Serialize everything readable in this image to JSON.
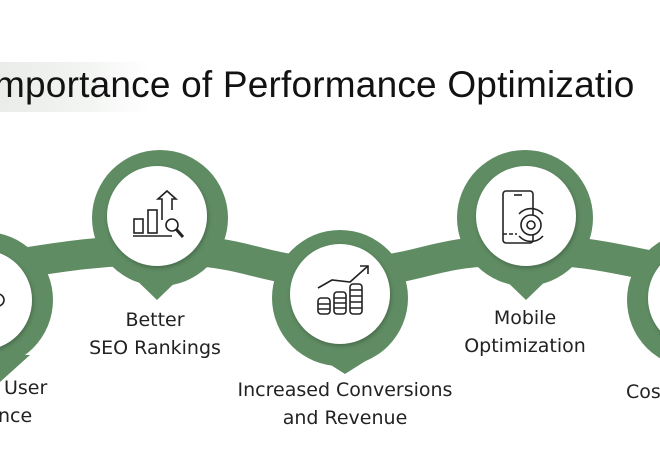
{
  "title": "mportance of Performance Optimizatio",
  "accent_color": "#5f8c63",
  "items": [
    {
      "icon": "user-experience-icon",
      "lines": [
        "User",
        "nce"
      ]
    },
    {
      "icon": "seo-chart-search-icon",
      "lines": [
        "Better",
        "SEO Rankings"
      ]
    },
    {
      "icon": "coins-growth-icon",
      "lines": [
        "Increased Conversions",
        "and Revenue"
      ]
    },
    {
      "icon": "mobile-gear-icon",
      "lines": [
        "Mobile",
        "Optimization"
      ]
    },
    {
      "icon": "cost-icon",
      "lines": [
        "Cos"
      ]
    }
  ]
}
